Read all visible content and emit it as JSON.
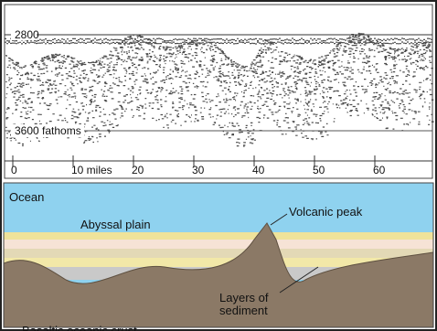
{
  "profile": {
    "depth_top": "2800",
    "depth_bottom": "3600 fathoms",
    "scale": [
      "0",
      "10 miles",
      "20",
      "30",
      "40",
      "50",
      "60"
    ]
  },
  "diagram": {
    "ocean": "Ocean",
    "plain": "Abyssal plain",
    "peak": "Volcanic peak",
    "layers": [
      "Layers of",
      "sediment"
    ],
    "crust": "Basaltic oceanic crust"
  }
}
